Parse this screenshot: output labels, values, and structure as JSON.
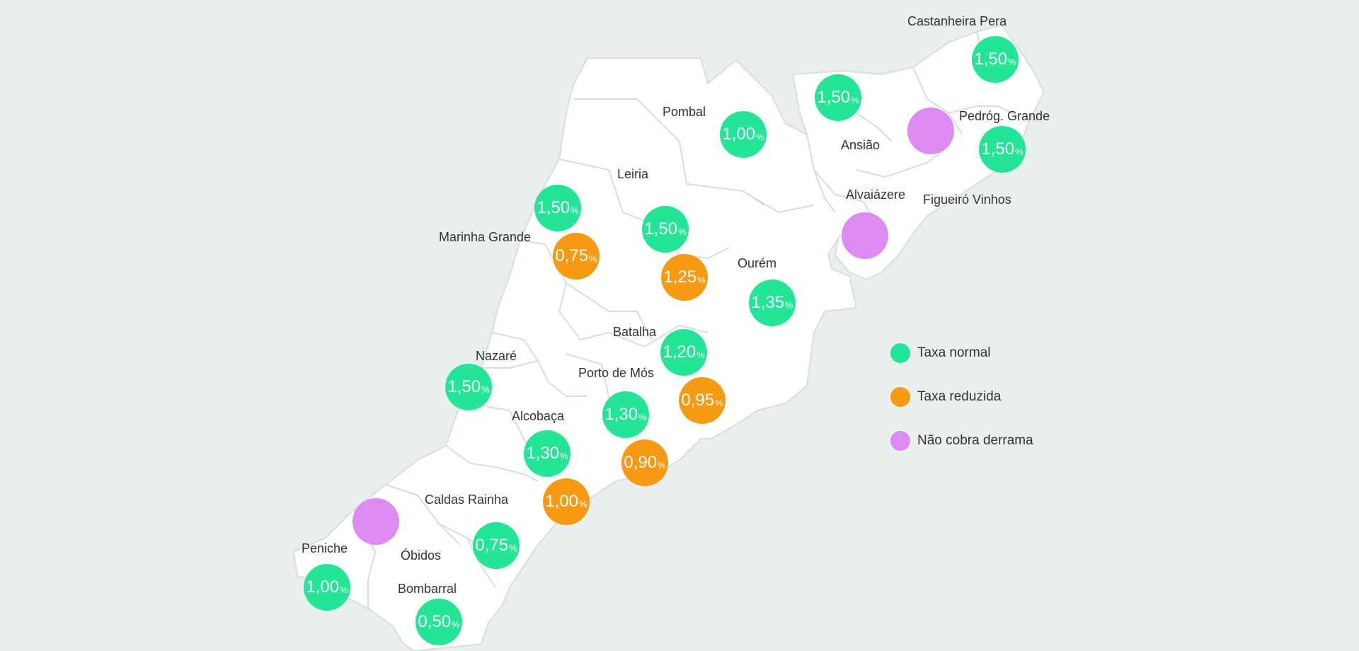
{
  "colors": {
    "normal": "#22e696",
    "reduzida": "#f79a12",
    "nao_cobra": "#dd8bf0",
    "region_fill": "#ffffff",
    "region_border": "#d8dddd",
    "background": "#e9eeef"
  },
  "legend": [
    {
      "key": "normal",
      "label": "Taxa normal"
    },
    {
      "key": "reduzida",
      "label": "Taxa reduzida"
    },
    {
      "key": "nao_cobra",
      "label": "Não cobra derrama"
    }
  ],
  "municipalities": [
    {
      "name": "Castanheira Pera",
      "rates": [
        {
          "value": "1,50",
          "type": "normal"
        }
      ]
    },
    {
      "name": "Pedróg. Grande",
      "rates": [
        {
          "value": "1,50",
          "type": "normal"
        }
      ]
    },
    {
      "name": "Ansião",
      "rates": [
        {
          "value": "",
          "type": "nao_cobra"
        }
      ]
    },
    {
      "name": "",
      "rates": [
        {
          "value": "1,50",
          "type": "normal"
        }
      ]
    },
    {
      "name": "Pombal",
      "rates": [
        {
          "value": "1,00",
          "type": "normal"
        }
      ]
    },
    {
      "name": "Alvaiázere",
      "rates": [
        {
          "value": "",
          "type": "nao_cobra"
        }
      ]
    },
    {
      "name": "Figueiró Vinhos",
      "rates": []
    },
    {
      "name": "Leiria",
      "rates": [
        {
          "value": "1,50",
          "type": "normal"
        },
        {
          "value": "1,25",
          "type": "reduzida"
        }
      ]
    },
    {
      "name": "Marinha Grande",
      "rates": [
        {
          "value": "1,50",
          "type": "normal"
        },
        {
          "value": "0,75",
          "type": "reduzida"
        }
      ]
    },
    {
      "name": "Ourém",
      "rates": [
        {
          "value": "1,35",
          "type": "normal"
        }
      ]
    },
    {
      "name": "Batalha",
      "rates": [
        {
          "value": "1,20",
          "type": "normal"
        },
        {
          "value": "0,95",
          "type": "reduzida"
        }
      ]
    },
    {
      "name": "Porto de Mós",
      "rates": [
        {
          "value": "1,30",
          "type": "normal"
        },
        {
          "value": "0,90",
          "type": "reduzida"
        }
      ]
    },
    {
      "name": "Nazaré",
      "rates": [
        {
          "value": "1,50",
          "type": "normal"
        }
      ]
    },
    {
      "name": "Alcobaça",
      "rates": [
        {
          "value": "1,30",
          "type": "normal"
        },
        {
          "value": "1,00",
          "type": "reduzida"
        }
      ]
    },
    {
      "name": "Caldas Rainha",
      "rates": [
        {
          "value": "0,75",
          "type": "normal"
        }
      ]
    },
    {
      "name": "Peniche",
      "rates": [
        {
          "value": "1,00",
          "type": "normal"
        }
      ]
    },
    {
      "name": "Óbidos",
      "rates": [
        {
          "value": "",
          "type": "nao_cobra"
        }
      ]
    },
    {
      "name": "Bombarral",
      "rates": [
        {
          "value": "0,50",
          "type": "normal"
        }
      ]
    }
  ],
  "percent_symbol": "%"
}
